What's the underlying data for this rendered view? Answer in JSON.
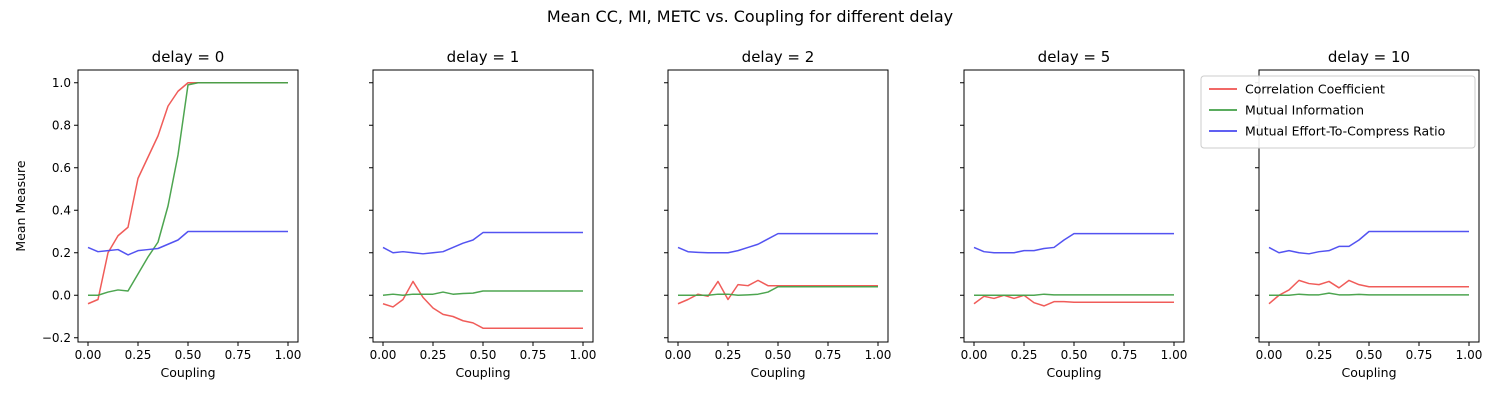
{
  "figure": {
    "title": "Mean CC, MI, METC vs. Coupling for different delay"
  },
  "legend": {
    "placement": "upper-right of last panel",
    "entries": [
      "Correlation Coefficient",
      "Mutual Information",
      "Mutual Effort-To-Compress Ratio"
    ]
  },
  "colors": {
    "Correlation Coefficient": "#ef5350",
    "Mutual Information": "#43a047",
    "Mutual Effort-To-Compress Ratio": "#4a4af0"
  },
  "chart_data": [
    {
      "type": "line",
      "title": "delay = 0",
      "xlabel": "Coupling",
      "ylabel": "Mean Measure",
      "xlim": [
        -0.05,
        1.05
      ],
      "ylim": [
        -0.22,
        1.06
      ],
      "xticks": [
        "0.00",
        "0.25",
        "0.50",
        "0.75",
        "1.00"
      ],
      "yticks": [
        "−0.2",
        "0.0",
        "0.2",
        "0.4",
        "0.6",
        "0.8",
        "1.0"
      ],
      "x": [
        0,
        0.05,
        0.1,
        0.15,
        0.2,
        0.25,
        0.3,
        0.35,
        0.4,
        0.45,
        0.5,
        0.55,
        0.6,
        0.65,
        0.7,
        0.75,
        0.8,
        0.85,
        0.9,
        0.95,
        1.0
      ],
      "series": [
        {
          "name": "Correlation Coefficient",
          "values": [
            -0.04,
            -0.02,
            0.2,
            0.28,
            0.32,
            0.55,
            0.65,
            0.75,
            0.89,
            0.96,
            1.0,
            1.0,
            1.0,
            1.0,
            1.0,
            1.0,
            1.0,
            1.0,
            1.0,
            1.0,
            1.0
          ]
        },
        {
          "name": "Mutual Information",
          "values": [
            0.0,
            0.0,
            0.015,
            0.025,
            0.02,
            0.1,
            0.18,
            0.25,
            0.42,
            0.66,
            0.99,
            1.0,
            1.0,
            1.0,
            1.0,
            1.0,
            1.0,
            1.0,
            1.0,
            1.0,
            1.0
          ]
        },
        {
          "name": "Mutual Effort-To-Compress Ratio",
          "values": [
            0.225,
            0.205,
            0.21,
            0.215,
            0.19,
            0.21,
            0.215,
            0.22,
            0.24,
            0.26,
            0.3,
            0.3,
            0.3,
            0.3,
            0.3,
            0.3,
            0.3,
            0.3,
            0.3,
            0.3,
            0.3
          ]
        }
      ]
    },
    {
      "type": "line",
      "title": "delay = 1",
      "xlabel": "Coupling",
      "ylabel": "",
      "xlim": [
        -0.05,
        1.05
      ],
      "ylim": [
        -0.22,
        1.06
      ],
      "xticks": [
        "0.00",
        "0.25",
        "0.50",
        "0.75",
        "1.00"
      ],
      "x": [
        0,
        0.05,
        0.1,
        0.15,
        0.2,
        0.25,
        0.3,
        0.35,
        0.4,
        0.45,
        0.5,
        0.55,
        0.6,
        0.65,
        0.7,
        0.75,
        0.8,
        0.85,
        0.9,
        0.95,
        1.0
      ],
      "series": [
        {
          "name": "Correlation Coefficient",
          "values": [
            -0.04,
            -0.055,
            -0.02,
            0.065,
            -0.01,
            -0.06,
            -0.09,
            -0.1,
            -0.12,
            -0.13,
            -0.155,
            -0.155,
            -0.155,
            -0.155,
            -0.155,
            -0.155,
            -0.155,
            -0.155,
            -0.155,
            -0.155,
            -0.155
          ]
        },
        {
          "name": "Mutual Information",
          "values": [
            0.0,
            0.005,
            0.0,
            0.005,
            0.005,
            0.005,
            0.015,
            0.005,
            0.008,
            0.01,
            0.02,
            0.02,
            0.02,
            0.02,
            0.02,
            0.02,
            0.02,
            0.02,
            0.02,
            0.02,
            0.02
          ]
        },
        {
          "name": "Mutual Effort-To-Compress Ratio",
          "values": [
            0.225,
            0.2,
            0.205,
            0.2,
            0.195,
            0.2,
            0.205,
            0.225,
            0.245,
            0.26,
            0.295,
            0.295,
            0.295,
            0.295,
            0.295,
            0.295,
            0.295,
            0.295,
            0.295,
            0.295,
            0.295
          ]
        }
      ]
    },
    {
      "type": "line",
      "title": "delay = 2",
      "xlabel": "Coupling",
      "ylabel": "",
      "xlim": [
        -0.05,
        1.05
      ],
      "ylim": [
        -0.22,
        1.06
      ],
      "xticks": [
        "0.00",
        "0.25",
        "0.50",
        "0.75",
        "1.00"
      ],
      "x": [
        0,
        0.05,
        0.1,
        0.15,
        0.2,
        0.25,
        0.3,
        0.35,
        0.4,
        0.45,
        0.5,
        0.55,
        0.6,
        0.65,
        0.7,
        0.75,
        0.8,
        0.85,
        0.9,
        0.95,
        1.0
      ],
      "series": [
        {
          "name": "Correlation Coefficient",
          "values": [
            -0.04,
            -0.02,
            0.005,
            -0.005,
            0.065,
            -0.02,
            0.05,
            0.045,
            0.07,
            0.045,
            0.045,
            0.045,
            0.045,
            0.045,
            0.045,
            0.045,
            0.045,
            0.045,
            0.045,
            0.045,
            0.045
          ]
        },
        {
          "name": "Mutual Information",
          "values": [
            0.0,
            0.0,
            0.0,
            0.0,
            0.005,
            0.005,
            0.0,
            0.002,
            0.005,
            0.015,
            0.04,
            0.04,
            0.04,
            0.04,
            0.04,
            0.04,
            0.04,
            0.04,
            0.04,
            0.04,
            0.04
          ]
        },
        {
          "name": "Mutual Effort-To-Compress Ratio",
          "values": [
            0.225,
            0.205,
            0.202,
            0.2,
            0.2,
            0.2,
            0.21,
            0.225,
            0.24,
            0.265,
            0.29,
            0.29,
            0.29,
            0.29,
            0.29,
            0.29,
            0.29,
            0.29,
            0.29,
            0.29,
            0.29
          ]
        }
      ]
    },
    {
      "type": "line",
      "title": "delay = 5",
      "xlabel": "Coupling",
      "ylabel": "",
      "xlim": [
        -0.05,
        1.05
      ],
      "ylim": [
        -0.22,
        1.06
      ],
      "xticks": [
        "0.00",
        "0.25",
        "0.50",
        "0.75",
        "1.00"
      ],
      "x": [
        0,
        0.05,
        0.1,
        0.15,
        0.2,
        0.25,
        0.3,
        0.35,
        0.4,
        0.45,
        0.5,
        0.55,
        0.6,
        0.65,
        0.7,
        0.75,
        0.8,
        0.85,
        0.9,
        0.95,
        1.0
      ],
      "series": [
        {
          "name": "Correlation Coefficient",
          "values": [
            -0.04,
            -0.005,
            -0.015,
            0.0,
            -0.015,
            0.0,
            -0.035,
            -0.05,
            -0.03,
            -0.03,
            -0.033,
            -0.033,
            -0.033,
            -0.033,
            -0.033,
            -0.033,
            -0.033,
            -0.033,
            -0.033,
            -0.033,
            -0.033
          ]
        },
        {
          "name": "Mutual Information",
          "values": [
            0.0,
            0.0,
            0.0,
            0.0,
            0.0,
            0.0,
            0.0,
            0.005,
            0.002,
            0.002,
            0.002,
            0.002,
            0.002,
            0.002,
            0.002,
            0.002,
            0.002,
            0.002,
            0.002,
            0.002,
            0.002
          ]
        },
        {
          "name": "Mutual Effort-To-Compress Ratio",
          "values": [
            0.225,
            0.205,
            0.2,
            0.2,
            0.2,
            0.21,
            0.21,
            0.22,
            0.225,
            0.26,
            0.29,
            0.29,
            0.29,
            0.29,
            0.29,
            0.29,
            0.29,
            0.29,
            0.29,
            0.29,
            0.29
          ]
        }
      ]
    },
    {
      "type": "line",
      "title": "delay = 10",
      "xlabel": "Coupling",
      "ylabel": "",
      "xlim": [
        -0.05,
        1.05
      ],
      "ylim": [
        -0.22,
        1.06
      ],
      "xticks": [
        "0.00",
        "0.25",
        "0.50",
        "0.75",
        "1.00"
      ],
      "x": [
        0,
        0.05,
        0.1,
        0.15,
        0.2,
        0.25,
        0.3,
        0.35,
        0.4,
        0.45,
        0.5,
        0.55,
        0.6,
        0.65,
        0.7,
        0.75,
        0.8,
        0.85,
        0.9,
        0.95,
        1.0
      ],
      "series": [
        {
          "name": "Correlation Coefficient",
          "values": [
            -0.04,
            0.0,
            0.025,
            0.07,
            0.055,
            0.05,
            0.065,
            0.035,
            0.07,
            0.05,
            0.04,
            0.04,
            0.04,
            0.04,
            0.04,
            0.04,
            0.04,
            0.04,
            0.04,
            0.04,
            0.04
          ]
        },
        {
          "name": "Mutual Information",
          "values": [
            0.0,
            0.0,
            0.0,
            0.005,
            0.002,
            0.002,
            0.01,
            0.002,
            0.002,
            0.004,
            0.002,
            0.002,
            0.002,
            0.002,
            0.002,
            0.002,
            0.002,
            0.002,
            0.002,
            0.002,
            0.002
          ]
        },
        {
          "name": "Mutual Effort-To-Compress Ratio",
          "values": [
            0.225,
            0.2,
            0.21,
            0.2,
            0.195,
            0.205,
            0.21,
            0.23,
            0.23,
            0.26,
            0.3,
            0.3,
            0.3,
            0.3,
            0.3,
            0.3,
            0.3,
            0.3,
            0.3,
            0.3,
            0.3
          ]
        }
      ]
    }
  ]
}
